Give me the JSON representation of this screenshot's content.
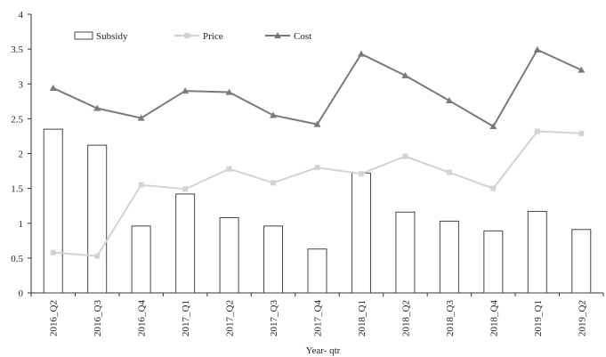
{
  "chart_data": {
    "type": "bar",
    "categories": [
      "2016_Q2",
      "2016_Q3",
      "2016_Q4",
      "2017_Q1",
      "2017_Q2",
      "2017_Q3",
      "2017_Q4",
      "2018_Q1",
      "2018_Q2",
      "2018_Q3",
      "2018_Q4",
      "2019_Q1",
      "2019_Q2"
    ],
    "series": [
      {
        "name": "Subsidy",
        "type": "bar",
        "values": [
          2.35,
          2.12,
          0.96,
          1.42,
          1.08,
          0.96,
          0.63,
          1.72,
          1.16,
          1.03,
          0.89,
          1.17,
          0.91
        ],
        "color": "#ffffff",
        "stroke": "#444444"
      },
      {
        "name": "Price",
        "type": "line",
        "marker": "square",
        "values": [
          0.58,
          0.53,
          1.55,
          1.49,
          1.78,
          1.58,
          1.8,
          1.71,
          1.96,
          1.73,
          1.5,
          2.32,
          2.29
        ],
        "color": "#d3d3d3"
      },
      {
        "name": "Cost",
        "type": "line",
        "marker": "triangle",
        "values": [
          2.94,
          2.65,
          2.51,
          2.9,
          2.88,
          2.55,
          2.42,
          3.43,
          3.12,
          2.76,
          2.39,
          3.49,
          3.2
        ],
        "color": "#7a7a7a"
      }
    ],
    "yticks": [
      "0",
      "0.5",
      "1",
      "1.5",
      "2",
      "2.5",
      "3",
      "3.5",
      "4"
    ],
    "ylim": [
      0,
      4
    ],
    "xlabel": "Year- qtr",
    "ylabel": "",
    "title": "",
    "grid": false,
    "legend_position": "top-left"
  }
}
